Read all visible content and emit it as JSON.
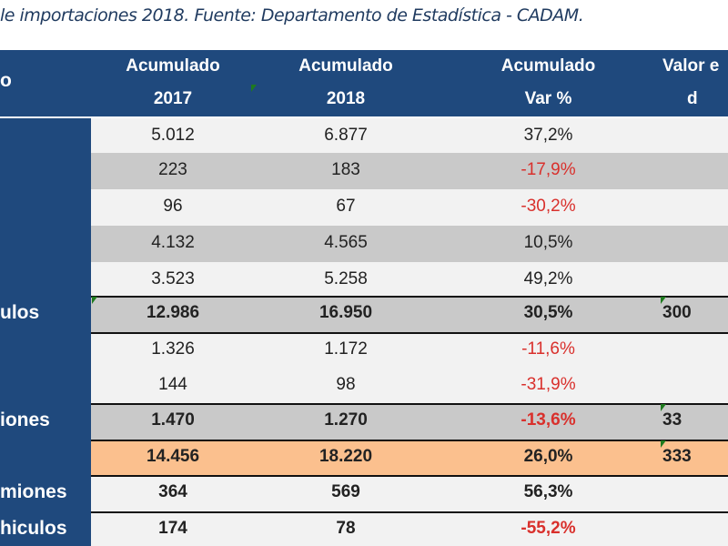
{
  "caption": "le importaciones 2018. Fuente: Departamento de Estadística - CADAM.",
  "header": {
    "col0": "o",
    "col1": [
      "Acumulado",
      "2017"
    ],
    "col2": [
      "Acumulado",
      "2018"
    ],
    "col3": [
      "Acumulado",
      "Var %"
    ],
    "col4": [
      "Valor e",
      "d"
    ]
  },
  "rows": [
    {
      "label": "",
      "v2017": "5.012",
      "v2018": "6.877",
      "var": "37,2%",
      "valor": "",
      "style": "light",
      "bold": false,
      "neg": false
    },
    {
      "label": "",
      "v2017": "223",
      "v2018": "183",
      "var": "-17,9%",
      "valor": "",
      "style": "gray",
      "bold": false,
      "neg": true
    },
    {
      "label": "",
      "v2017": "96",
      "v2018": "67",
      "var": "-30,2%",
      "valor": "",
      "style": "light",
      "bold": false,
      "neg": true
    },
    {
      "label": "",
      "v2017": "4.132",
      "v2018": "4.565",
      "var": "10,5%",
      "valor": "",
      "style": "gray",
      "bold": false,
      "neg": false
    },
    {
      "label": "",
      "v2017": "3.523",
      "v2018": "5.258",
      "var": "49,2%",
      "valor": "",
      "style": "light",
      "bold": false,
      "neg": false
    },
    {
      "label": "ulos",
      "v2017": "12.986",
      "v2018": "16.950",
      "var": "30,5%",
      "valor": "300",
      "style": "gray",
      "bold": true,
      "neg": false
    },
    {
      "label": "",
      "v2017": "1.326",
      "v2018": "1.172",
      "var": "-11,6%",
      "valor": "",
      "style": "light",
      "bold": false,
      "neg": true
    },
    {
      "label": "",
      "v2017": "144",
      "v2018": "98",
      "var": "-31,9%",
      "valor": "",
      "style": "light",
      "bold": false,
      "neg": true
    },
    {
      "label": "iones",
      "v2017": "1.470",
      "v2018": "1.270",
      "var": "-13,6%",
      "valor": "33",
      "style": "gray",
      "bold": true,
      "neg": true
    },
    {
      "label": "",
      "v2017": "14.456",
      "v2018": "18.220",
      "var": "26,0%",
      "valor": "333",
      "style": "orange",
      "bold": true,
      "neg": false
    },
    {
      "label": "miones",
      "v2017": "364",
      "v2018": "569",
      "var": "56,3%",
      "valor": "",
      "style": "light",
      "bold": true,
      "neg": false
    },
    {
      "label": "hiculos",
      "v2017": "174",
      "v2018": "78",
      "var": "-55,2%",
      "valor": "",
      "style": "light",
      "bold": true,
      "neg": true
    }
  ],
  "colors": {
    "header": "#1f497d",
    "gray": "#c9c9c9",
    "light": "#f2f2f2",
    "orange": "#fbc08e",
    "negative": "#d9302c"
  }
}
